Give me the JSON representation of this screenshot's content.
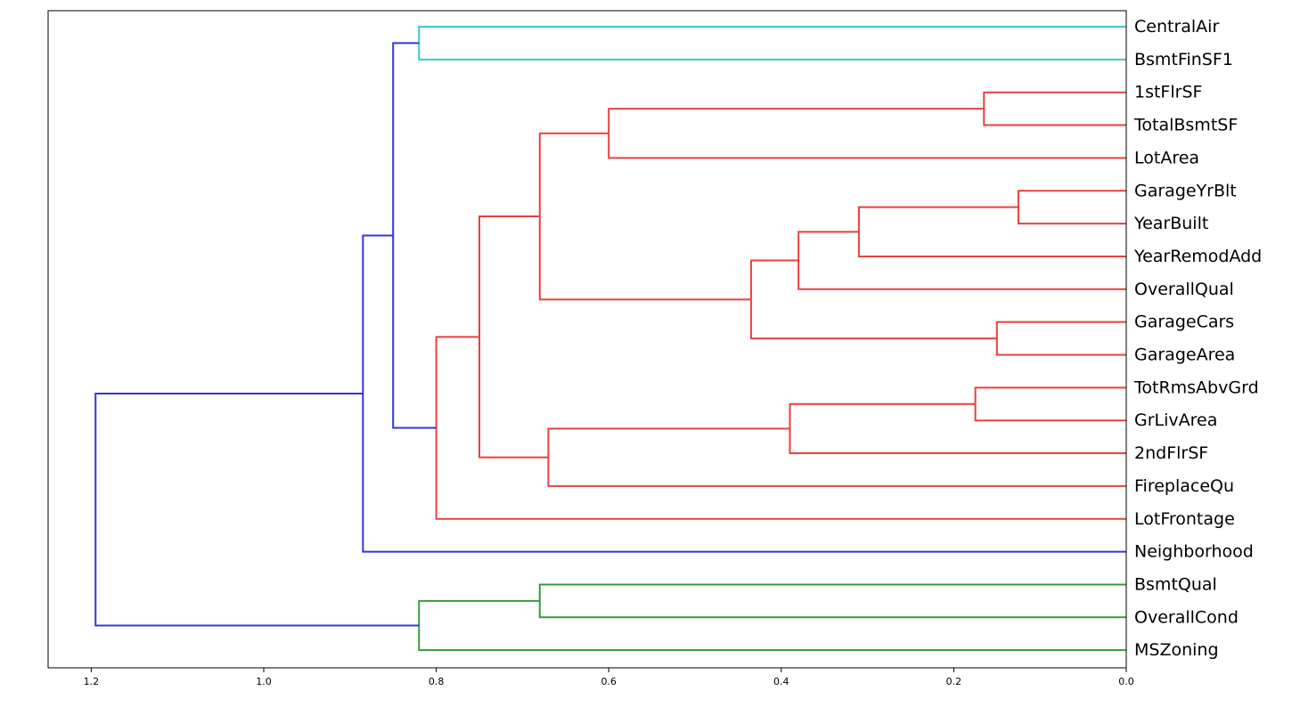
{
  "chart_data": {
    "type": "dendrogram",
    "orientation": "left",
    "xlim": [
      1.25,
      0.0
    ],
    "xticks": [
      {
        "value": 1.2,
        "label": "1.2"
      },
      {
        "value": 1.0,
        "label": "1.0"
      },
      {
        "value": 0.8,
        "label": "0.8"
      },
      {
        "value": 0.6,
        "label": "0.6"
      },
      {
        "value": 0.4,
        "label": "0.4"
      },
      {
        "value": 0.2,
        "label": "0.2"
      },
      {
        "value": 0.0,
        "label": "0.0"
      }
    ],
    "grid": false,
    "colors": {
      "cyan": "#3cc8c8",
      "red": "#e8413e",
      "green": "#3a9a3a",
      "blue": "#3434e0"
    },
    "leaves": [
      "CentralAir",
      "BsmtFinSF1",
      "1stFlrSF",
      "TotalBsmtSF",
      "LotArea",
      "GarageYrBlt",
      "YearBuilt",
      "YearRemodAdd",
      "OverallQual",
      "GarageCars",
      "GarageArea",
      "TotRmsAbvGrd",
      "GrLivArea",
      "2ndFlrSF",
      "FireplaceQu",
      "LotFrontage",
      "Neighborhood",
      "BsmtQual",
      "OverallCond",
      "MSZoning"
    ],
    "merges": [
      {
        "id": "c1",
        "left": "CentralAir",
        "right": "BsmtFinSF1",
        "height": 0.82,
        "color": "cyan"
      },
      {
        "id": "r1",
        "left": "1stFlrSF",
        "right": "TotalBsmtSF",
        "height": 0.165,
        "color": "red"
      },
      {
        "id": "r2",
        "left": "r1",
        "right": "LotArea",
        "height": 0.6,
        "color": "red"
      },
      {
        "id": "r3",
        "left": "GarageYrBlt",
        "right": "YearBuilt",
        "height": 0.125,
        "color": "red"
      },
      {
        "id": "r4",
        "left": "r3",
        "right": "YearRemodAdd",
        "height": 0.31,
        "color": "red"
      },
      {
        "id": "r5",
        "left": "r4",
        "right": "OverallQual",
        "height": 0.38,
        "color": "red"
      },
      {
        "id": "r6",
        "left": "GarageCars",
        "right": "GarageArea",
        "height": 0.15,
        "color": "red"
      },
      {
        "id": "r7",
        "left": "r5",
        "right": "r6",
        "height": 0.435,
        "color": "red"
      },
      {
        "id": "r8",
        "left": "r2",
        "right": "r7",
        "height": 0.68,
        "color": "red"
      },
      {
        "id": "r9",
        "left": "TotRmsAbvGrd",
        "right": "GrLivArea",
        "height": 0.175,
        "color": "red"
      },
      {
        "id": "r10",
        "left": "r9",
        "right": "2ndFlrSF",
        "height": 0.39,
        "color": "red"
      },
      {
        "id": "r11",
        "left": "r10",
        "right": "FireplaceQu",
        "height": 0.67,
        "color": "red"
      },
      {
        "id": "r12",
        "left": "r8",
        "right": "r11",
        "height": 0.75,
        "color": "red"
      },
      {
        "id": "r13",
        "left": "r12",
        "right": "LotFrontage",
        "height": 0.8,
        "color": "red"
      },
      {
        "id": "b1",
        "left": "c1",
        "right": "r13",
        "height": 0.85,
        "color": "blue"
      },
      {
        "id": "b2",
        "left": "b1",
        "right": "Neighborhood",
        "height": 0.885,
        "color": "blue"
      },
      {
        "id": "g1",
        "left": "BsmtQual",
        "right": "OverallCond",
        "height": 0.68,
        "color": "green"
      },
      {
        "id": "g2",
        "left": "g1",
        "right": "MSZoning",
        "height": 0.82,
        "color": "green"
      },
      {
        "id": "b3",
        "left": "b2",
        "right": "g2",
        "height": 1.195,
        "color": "blue"
      }
    ]
  }
}
